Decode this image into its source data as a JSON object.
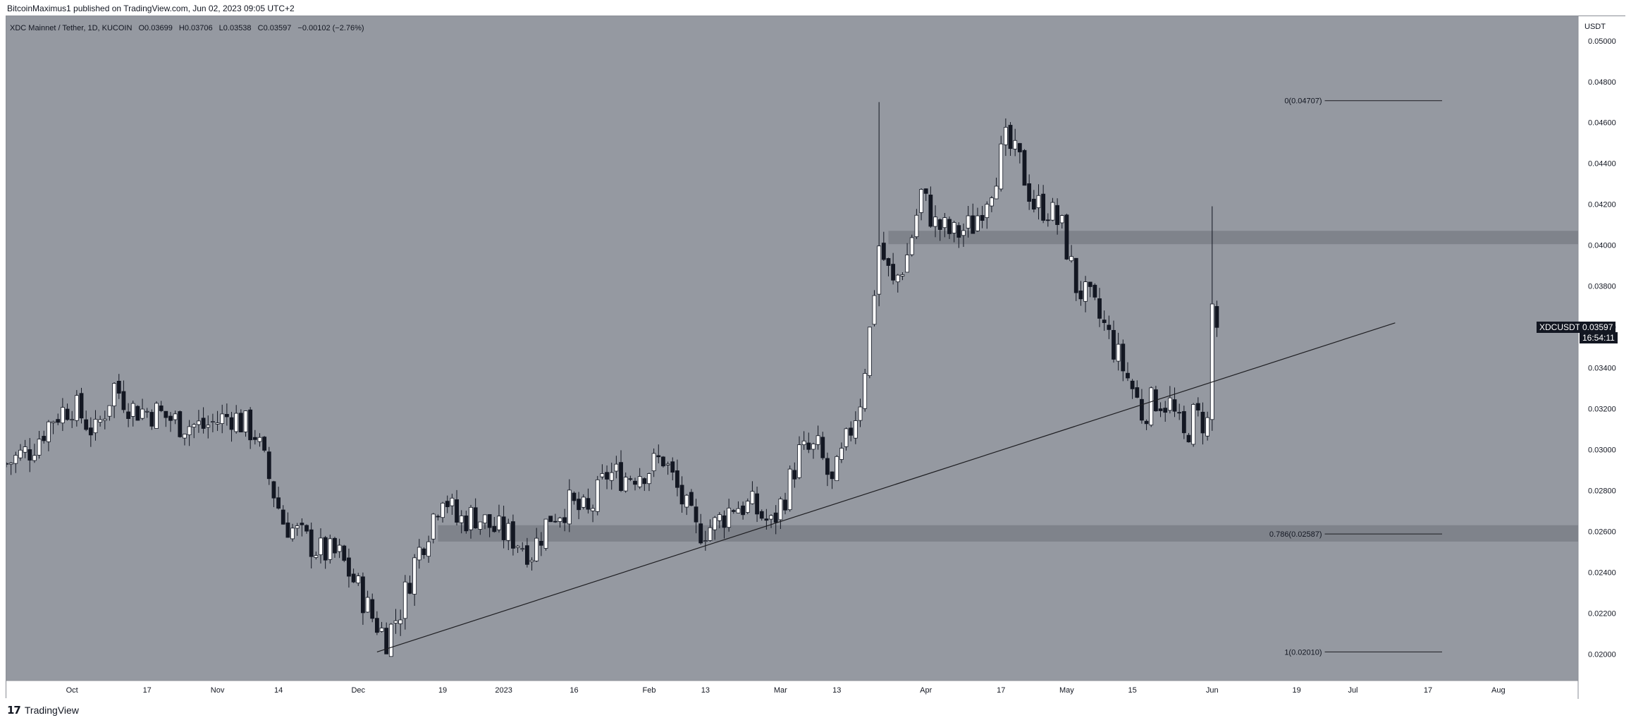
{
  "header": {
    "publisher_text": "BitcoinMaximus1 published on TradingView.com, Jun 02, 2023 09:05 UTC+2"
  },
  "legend": {
    "symbol": "XDC Mainnet / Tether, 1D, KUCOIN",
    "open_label": "O",
    "open": "0.03699",
    "high_label": "H",
    "high": "0.03706",
    "low_label": "L",
    "low": "0.03538",
    "close_label": "C",
    "close": "0.03597",
    "change": "−0.00102 (−2.76%)"
  },
  "price_axis": {
    "unit": "USDT",
    "ticker": "XDCUSDT",
    "last_price": "0.03597",
    "countdown": "16:54:11"
  },
  "footer": {
    "brand": "TradingView",
    "logo_glyph": "17"
  },
  "colors": {
    "background": "#9599a1",
    "up_body": "#ffffff",
    "down_body": "#131722",
    "zone": "#7b7f87",
    "line": "#1e1e22"
  },
  "chart_data": {
    "type": "candlestick",
    "symbol": "XDCUSDT",
    "interval": "1D",
    "ylim": [
      0.0187,
      0.0512
    ],
    "y_ticks": [
      "0.05000",
      "0.04800",
      "0.04600",
      "0.04400",
      "0.04200",
      "0.04000",
      "0.03800",
      "0.03600",
      "0.03400",
      "0.03200",
      "0.03000",
      "0.02800",
      "0.02600",
      "0.02400",
      "0.02200",
      "0.02000"
    ],
    "x_ticks": [
      {
        "label": "Oct",
        "date": "2022-10-01"
      },
      {
        "label": "17",
        "date": "2022-10-17"
      },
      {
        "label": "Nov",
        "date": "2022-11-01"
      },
      {
        "label": "14",
        "date": "2022-11-14"
      },
      {
        "label": "Dec",
        "date": "2022-12-01"
      },
      {
        "label": "19",
        "date": "2022-12-19"
      },
      {
        "label": "2023",
        "date": "2023-01-01"
      },
      {
        "label": "16",
        "date": "2023-01-16"
      },
      {
        "label": "Feb",
        "date": "2023-02-01"
      },
      {
        "label": "13",
        "date": "2023-02-13"
      },
      {
        "label": "Mar",
        "date": "2023-03-01"
      },
      {
        "label": "13",
        "date": "2023-03-13"
      },
      {
        "label": "Apr",
        "date": "2023-04-01"
      },
      {
        "label": "17",
        "date": "2023-04-17"
      },
      {
        "label": "May",
        "date": "2023-05-01"
      },
      {
        "label": "15",
        "date": "2023-05-15"
      },
      {
        "label": "Jun",
        "date": "2023-06-01"
      },
      {
        "label": "19",
        "date": "2023-06-19"
      },
      {
        "label": "Jul",
        "date": "2023-07-01"
      },
      {
        "label": "17",
        "date": "2023-07-17"
      },
      {
        "label": "Aug",
        "date": "2023-08-01"
      }
    ],
    "x_range": [
      "2022-09-17",
      "2023-08-18"
    ],
    "close_path": [
      [
        "2022-09-17",
        0.0293
      ],
      [
        "2022-09-22",
        0.03
      ],
      [
        "2022-09-27",
        0.0316
      ],
      [
        "2022-10-01",
        0.0322
      ],
      [
        "2022-10-06",
        0.0308
      ],
      [
        "2022-10-10",
        0.0331
      ],
      [
        "2022-10-14",
        0.032
      ],
      [
        "2022-10-19",
        0.0318
      ],
      [
        "2022-10-24",
        0.0313
      ],
      [
        "2022-10-29",
        0.0311
      ],
      [
        "2022-11-04",
        0.0317
      ],
      [
        "2022-11-09",
        0.0308
      ],
      [
        "2022-11-12",
        0.0286
      ],
      [
        "2022-11-15",
        0.0265
      ],
      [
        "2022-11-19",
        0.0257
      ],
      [
        "2022-11-23",
        0.025
      ],
      [
        "2022-11-27",
        0.0248
      ],
      [
        "2022-12-01",
        0.0232
      ],
      [
        "2022-12-04",
        0.0218
      ],
      [
        "2022-12-07",
        0.0208
      ],
      [
        "2022-12-10",
        0.0222
      ],
      [
        "2022-12-13",
        0.0245
      ],
      [
        "2022-12-16",
        0.0262
      ],
      [
        "2022-12-19",
        0.028
      ],
      [
        "2022-12-22",
        0.0265
      ],
      [
        "2022-12-26",
        0.0268
      ],
      [
        "2022-12-30",
        0.0261
      ],
      [
        "2023-01-03",
        0.0257
      ],
      [
        "2023-01-07",
        0.025
      ],
      [
        "2023-01-11",
        0.0268
      ],
      [
        "2023-01-15",
        0.0273
      ],
      [
        "2023-01-19",
        0.0268
      ],
      [
        "2023-01-23",
        0.0288
      ],
      [
        "2023-01-27",
        0.0287
      ],
      [
        "2023-02-01",
        0.0291
      ],
      [
        "2023-02-04",
        0.0296
      ],
      [
        "2023-02-08",
        0.0275
      ],
      [
        "2023-02-11",
        0.026
      ],
      [
        "2023-02-15",
        0.0263
      ],
      [
        "2023-02-19",
        0.0273
      ],
      [
        "2023-02-23",
        0.0272
      ],
      [
        "2023-02-27",
        0.0263
      ],
      [
        "2023-03-02",
        0.0278
      ],
      [
        "2023-03-05",
        0.0298
      ],
      [
        "2023-03-09",
        0.03
      ],
      [
        "2023-03-12",
        0.0282
      ],
      [
        "2023-03-15",
        0.0303
      ],
      [
        "2023-03-18",
        0.0325
      ],
      [
        "2023-03-20",
        0.0358
      ],
      [
        "2023-03-22",
        0.04
      ],
      [
        "2023-03-25",
        0.038
      ],
      [
        "2023-03-28",
        0.0395
      ],
      [
        "2023-03-31",
        0.0425
      ],
      [
        "2023-04-03",
        0.041
      ],
      [
        "2023-04-07",
        0.0405
      ],
      [
        "2023-04-11",
        0.041
      ],
      [
        "2023-04-15",
        0.043
      ],
      [
        "2023-04-18",
        0.045
      ],
      [
        "2023-04-21",
        0.044
      ],
      [
        "2023-04-24",
        0.042
      ],
      [
        "2023-04-27",
        0.0418
      ],
      [
        "2023-04-30",
        0.0408
      ],
      [
        "2023-05-03",
        0.038
      ],
      [
        "2023-05-06",
        0.0372
      ],
      [
        "2023-05-09",
        0.036
      ],
      [
        "2023-05-12",
        0.0345
      ],
      [
        "2023-05-15",
        0.033
      ],
      [
        "2023-05-17",
        0.0318
      ],
      [
        "2023-05-20",
        0.0325
      ],
      [
        "2023-05-23",
        0.0322
      ],
      [
        "2023-05-26",
        0.0305
      ],
      [
        "2023-05-28",
        0.0316
      ],
      [
        "2023-05-31",
        0.0313
      ],
      [
        "2023-06-01",
        0.037
      ],
      [
        "2023-06-02",
        0.036
      ]
    ],
    "annotations": {
      "fib_levels": [
        {
          "label": "0(0.04707)",
          "value": 0.04707
        },
        {
          "label": "0.786(0.02587)",
          "value": 0.02587
        },
        {
          "label": "1(0.02010)",
          "value": 0.0201
        }
      ],
      "zones": [
        {
          "from": "2023-03-24",
          "to": "2023-08-18",
          "low": 0.04005,
          "high": 0.0407
        },
        {
          "from": "2022-12-18",
          "to": "2023-08-18",
          "low": 0.0255,
          "high": 0.0263
        }
      ],
      "trendline": [
        [
          "2022-12-05",
          0.0201
        ],
        [
          "2023-07-10",
          0.0362
        ]
      ]
    }
  }
}
